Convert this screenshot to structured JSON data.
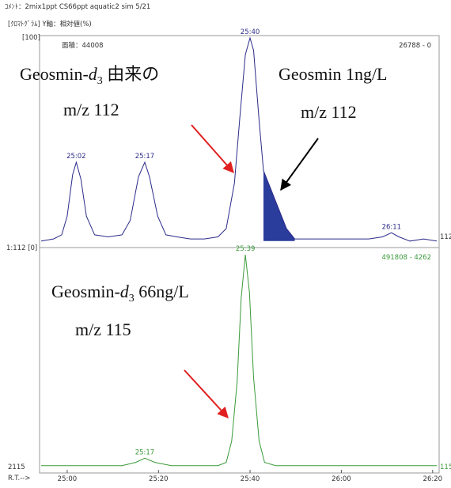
{
  "header": {
    "comment": "ｺﾒﾝﾄ：2mix1ppt CS66ppt aquatic2 sim 5/21",
    "chromatogram": "[ｸﾛﾏﾄｸﾞﾗﾑ]  Y軸：相対値(%)"
  },
  "chart_data": [
    {
      "type": "line",
      "color": "#2b2b8a",
      "top_label": "[100]",
      "area_label": "面積：44008",
      "range_label": "26788 - 0",
      "ion_label": "112",
      "xlim": [
        24.905,
        26.348
      ],
      "ylim": [
        0,
        100
      ],
      "x": [
        24.905,
        24.95,
        24.98,
        25.0,
        25.02,
        25.033,
        25.05,
        25.07,
        25.1,
        25.15,
        25.2,
        25.23,
        25.26,
        25.283,
        25.3,
        25.33,
        25.36,
        25.4,
        25.45,
        25.5,
        25.55,
        25.58,
        25.61,
        25.63,
        25.65,
        25.667,
        25.68,
        25.7,
        25.716,
        25.74,
        25.77,
        25.8,
        25.83,
        25.9,
        26.0,
        26.1,
        26.15,
        26.183,
        26.21,
        26.25,
        26.3,
        26.348
      ],
      "values": [
        2,
        3,
        5,
        14,
        34,
        40,
        32,
        14,
        5,
        4,
        5,
        12,
        33,
        40,
        33,
        14,
        5,
        4,
        3,
        3,
        4,
        8,
        30,
        62,
        92,
        100,
        94,
        60,
        36,
        28,
        18,
        8,
        3,
        3,
        3,
        3,
        4,
        6,
        4,
        2,
        3,
        2
      ],
      "shade": [
        25.716,
        25.83
      ],
      "shade_color": "#2a3c9c",
      "peak_labels": [
        {
          "value": 25.033,
          "label": "25:02"
        },
        {
          "value": 25.283,
          "label": "25:17"
        },
        {
          "value": 25.667,
          "label": "25:40"
        },
        {
          "value": 26.183,
          "label": "26:11"
        }
      ],
      "annotations": [
        [
          "Geosmin-",
          "d",
          "3",
          " 由来の"
        ],
        [
          "m/z 112"
        ],
        [
          "Geosmin 1ng/L"
        ],
        [
          "m/z 112"
        ]
      ]
    },
    {
      "type": "line",
      "color": "#3a9a3a",
      "top_label": "1:112 [0]",
      "range_label": "491808 - 4262",
      "ion_label": "115",
      "bottom_label": "2115",
      "x_label": "R.T.-->",
      "xlim": [
        24.905,
        26.348
      ],
      "ylim": [
        0,
        100
      ],
      "xticks": [
        {
          "value": 25.0,
          "label": "25:00"
        },
        {
          "value": 25.333,
          "label": "25:20"
        },
        {
          "value": 25.667,
          "label": "25:40"
        },
        {
          "value": 26.0,
          "label": "26:00"
        },
        {
          "value": 26.333,
          "label": "26:20"
        }
      ],
      "x": [
        24.905,
        25.2,
        25.25,
        25.283,
        25.32,
        25.38,
        25.55,
        25.58,
        25.6,
        25.62,
        25.635,
        25.65,
        25.665,
        25.68,
        25.7,
        25.72,
        25.76,
        26.348
      ],
      "values": [
        0.5,
        0.5,
        2,
        4,
        2,
        0.5,
        0.5,
        2,
        12,
        40,
        80,
        100,
        82,
        42,
        12,
        2,
        0.5,
        0.5
      ],
      "peak_labels": [
        {
          "value": 25.283,
          "label": "25:17"
        },
        {
          "value": 25.65,
          "label": "25:39"
        }
      ],
      "annotations": [
        [
          "Geosmin-",
          "d",
          "3",
          " 66ng/L"
        ],
        [
          "m/z 115"
        ]
      ]
    }
  ]
}
